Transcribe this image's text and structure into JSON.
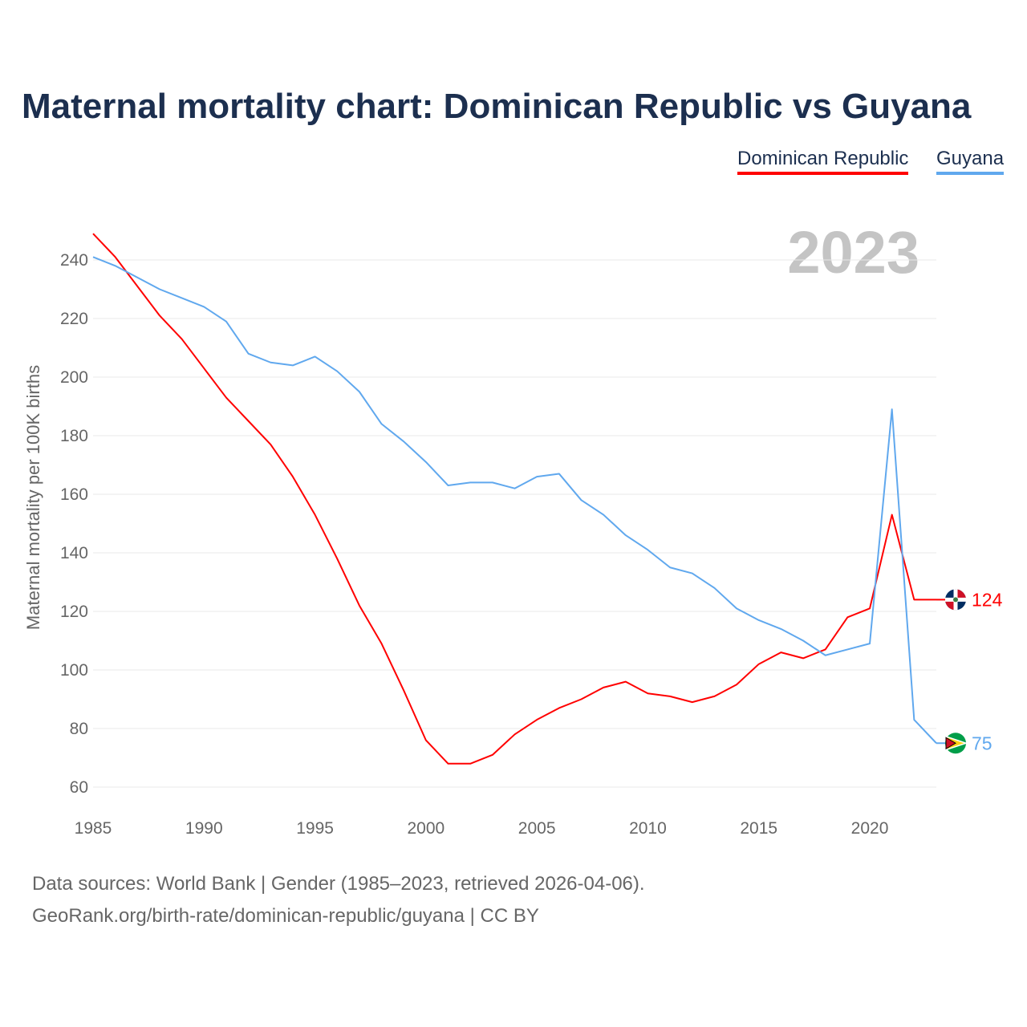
{
  "chart_data": {
    "type": "line",
    "title": "Maternal mortality chart: Dominican Republic vs Guyana",
    "ylabel": "Maternal mortality per 100K births",
    "xlabel": "",
    "year_label": "2023",
    "xlim": [
      1985,
      2023
    ],
    "ylim": [
      60,
      250
    ],
    "yticks": [
      60,
      80,
      100,
      120,
      140,
      160,
      180,
      200,
      220,
      240
    ],
    "xticks": [
      1985,
      1990,
      1995,
      2000,
      2005,
      2010,
      2015,
      2020
    ],
    "grid": true,
    "legend_position": "top-right",
    "x": [
      1985,
      1986,
      1987,
      1988,
      1989,
      1990,
      1991,
      1992,
      1993,
      1994,
      1995,
      1996,
      1997,
      1998,
      1999,
      2000,
      2001,
      2002,
      2003,
      2004,
      2005,
      2006,
      2007,
      2008,
      2009,
      2010,
      2011,
      2012,
      2013,
      2014,
      2015,
      2016,
      2017,
      2018,
      2019,
      2020,
      2021,
      2022,
      2023
    ],
    "series": [
      {
        "name": "Dominican Republic",
        "color": "#ff0000",
        "end_label": "124",
        "values": [
          249,
          241,
          231,
          221,
          213,
          203,
          193,
          185,
          177,
          166,
          153,
          138,
          122,
          109,
          93,
          76,
          68,
          68,
          71,
          78,
          83,
          87,
          90,
          94,
          96,
          92,
          91,
          89,
          91,
          95,
          102,
          106,
          104,
          107,
          118,
          121,
          153,
          124,
          124
        ]
      },
      {
        "name": "Guyana",
        "color": "#60a8ee",
        "end_label": "75",
        "values": [
          241,
          238,
          234,
          230,
          227,
          224,
          219,
          208,
          205,
          204,
          207,
          202,
          195,
          184,
          178,
          171,
          163,
          164,
          164,
          162,
          166,
          167,
          158,
          153,
          146,
          141,
          135,
          133,
          128,
          121,
          117,
          114,
          110,
          105,
          107,
          109,
          189,
          83,
          75
        ]
      }
    ]
  },
  "source": {
    "line1": "Data sources: World Bank | Gender (1985–2023, retrieved 2026-04-06).",
    "line2": "GeoRank.org/birth-rate/dominican-republic/guyana | CC BY"
  }
}
